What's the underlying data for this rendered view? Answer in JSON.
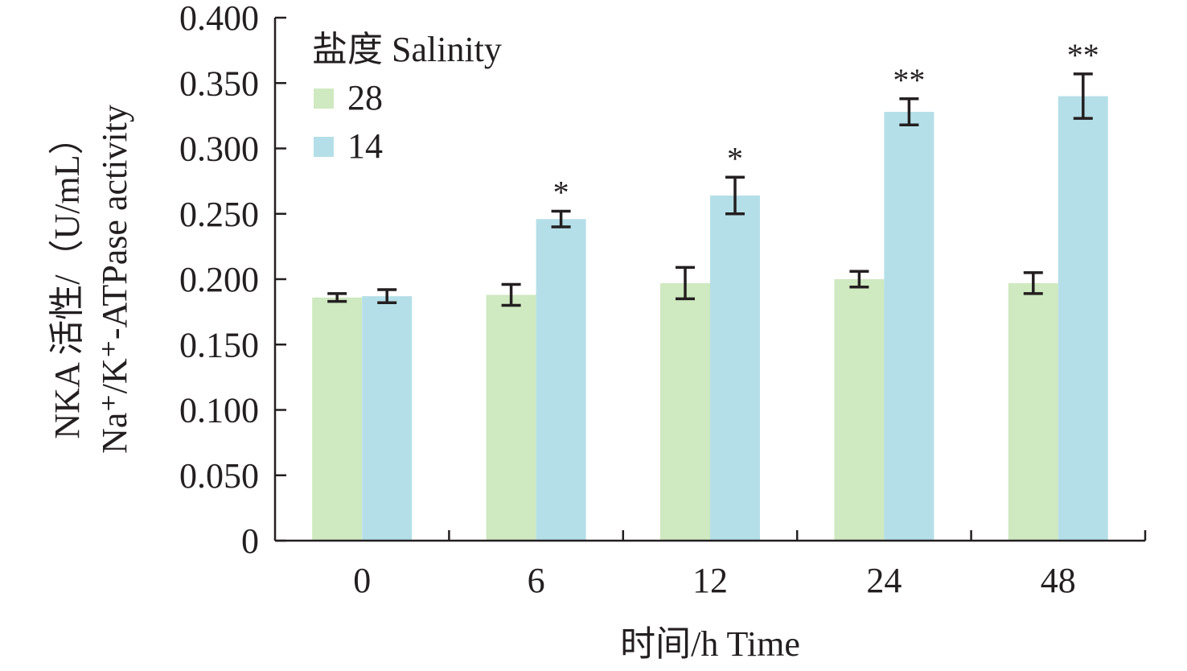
{
  "chart_data": {
    "type": "bar",
    "categories": [
      "0",
      "6",
      "12",
      "24",
      "48"
    ],
    "series": [
      {
        "name": "28",
        "color": "#cfe9c0",
        "values": [
          0.186,
          0.188,
          0.197,
          0.2,
          0.197
        ],
        "errors": [
          0.003,
          0.008,
          0.012,
          0.006,
          0.008
        ]
      },
      {
        "name": "14",
        "color": "#b5dfe8",
        "values": [
          0.187,
          0.246,
          0.264,
          0.328,
          0.34
        ],
        "errors": [
          0.005,
          0.006,
          0.014,
          0.01,
          0.017
        ]
      }
    ],
    "significance": [
      {
        "category": "6",
        "series": "14",
        "label": "*"
      },
      {
        "category": "12",
        "series": "14",
        "label": "*"
      },
      {
        "category": "24",
        "series": "14",
        "label": "**"
      },
      {
        "category": "48",
        "series": "14",
        "label": "**"
      }
    ],
    "ylim": [
      0,
      0.4
    ],
    "yticks": [
      "0",
      "0.050",
      "0.100",
      "0.150",
      "0.200",
      "0.250",
      "0.300",
      "0.350",
      "0.400"
    ],
    "ylabel_line1": "NKA 活性/（U/mL）",
    "ylabel_line2": "Na⁺/K⁺-ATPase activity",
    "xlabel": "时间/h Time",
    "legend_title": "盐度 Salinity",
    "legend_position": "top-left",
    "grid": false
  }
}
